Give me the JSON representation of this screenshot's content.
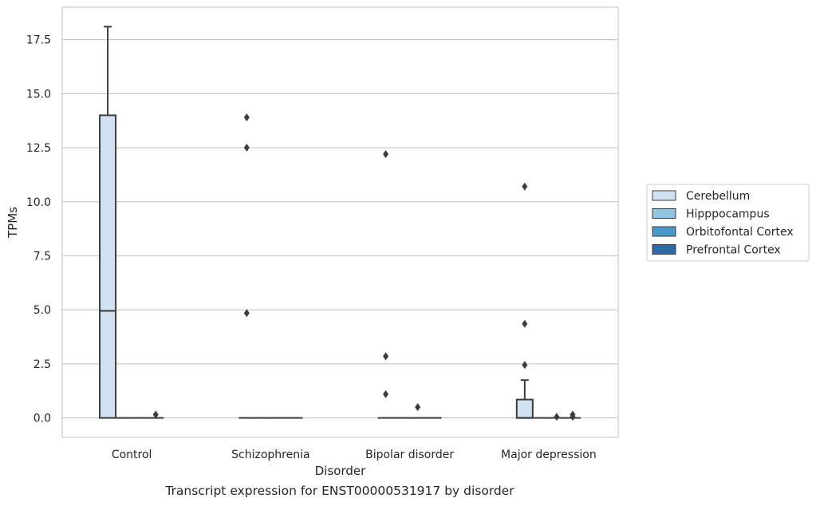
{
  "chart_data": {
    "type": "box",
    "title": "Transcript expression for ENST00000531917 by disorder",
    "xlabel": "Disorder",
    "ylabel": "TPMs",
    "categories": [
      "Control",
      "Schizophrenia",
      "Bipolar disorder",
      "Major depression"
    ],
    "ylim": [
      -0.9,
      19.0
    ],
    "yticks": [
      0.0,
      2.5,
      5.0,
      7.5,
      10.0,
      12.5,
      15.0,
      17.5
    ],
    "ytick_labels": [
      "0.0",
      "2.5",
      "5.0",
      "7.5",
      "10.0",
      "12.5",
      "15.0",
      "17.5"
    ],
    "grid": "horizontal",
    "legend_position": "right",
    "series": [
      {
        "name": "Cerebellum",
        "color": "#d0e1f2",
        "boxes": [
          {
            "q1": 0,
            "median": 4.95,
            "q3": 14.0,
            "whisker_low": 0,
            "whisker_high": 18.1,
            "outliers": []
          },
          {
            "q1": 0,
            "median": 0,
            "q3": 0,
            "whisker_low": 0,
            "whisker_high": 0,
            "outliers": [
              13.9,
              12.5,
              4.85
            ]
          },
          {
            "q1": 0,
            "median": 0,
            "q3": 0,
            "whisker_low": 0,
            "whisker_high": 0,
            "outliers": [
              12.2,
              2.85,
              1.1
            ]
          },
          {
            "q1": 0,
            "median": 0,
            "q3": 0.85,
            "whisker_low": 0,
            "whisker_high": 1.75,
            "outliers": [
              10.7,
              4.35,
              2.45
            ]
          }
        ]
      },
      {
        "name": "Hipppocampus",
        "color": "#94c4df",
        "boxes": [
          {
            "q1": 0,
            "median": 0,
            "q3": 0,
            "whisker_low": 0,
            "whisker_high": 0,
            "outliers": []
          },
          {
            "q1": 0,
            "median": 0,
            "q3": 0,
            "whisker_low": 0,
            "whisker_high": 0,
            "outliers": []
          },
          {
            "q1": 0,
            "median": 0,
            "q3": 0,
            "whisker_low": 0,
            "whisker_high": 0,
            "outliers": []
          },
          {
            "q1": 0,
            "median": 0,
            "q3": 0,
            "whisker_low": 0,
            "whisker_high": 0,
            "outliers": []
          }
        ]
      },
      {
        "name": "Orbitofontal Cortex",
        "color": "#4a98c9",
        "boxes": [
          {
            "q1": 0,
            "median": 0,
            "q3": 0,
            "whisker_low": 0,
            "whisker_high": 0,
            "outliers": []
          },
          {
            "q1": 0,
            "median": 0,
            "q3": 0,
            "whisker_low": 0,
            "whisker_high": 0,
            "outliers": []
          },
          {
            "q1": 0,
            "median": 0,
            "q3": 0,
            "whisker_low": 0,
            "whisker_high": 0,
            "outliers": [
              0.5
            ]
          },
          {
            "q1": 0,
            "median": 0,
            "q3": 0,
            "whisker_low": 0,
            "whisker_high": 0,
            "outliers": [
              0.05
            ]
          }
        ]
      },
      {
        "name": "Prefrontal Cortex",
        "color": "#2c6aa8",
        "boxes": [
          {
            "q1": 0,
            "median": 0,
            "q3": 0,
            "whisker_low": 0,
            "whisker_high": 0,
            "outliers": [
              0.15
            ]
          },
          {
            "q1": 0,
            "median": 0,
            "q3": 0,
            "whisker_low": 0,
            "whisker_high": 0,
            "outliers": []
          },
          {
            "q1": 0,
            "median": 0,
            "q3": 0,
            "whisker_low": 0,
            "whisker_high": 0,
            "outliers": []
          },
          {
            "q1": 0,
            "median": 0,
            "q3": 0,
            "whisker_low": 0,
            "whisker_high": 0,
            "outliers": [
              0.15,
              0.05
            ]
          }
        ]
      }
    ]
  }
}
